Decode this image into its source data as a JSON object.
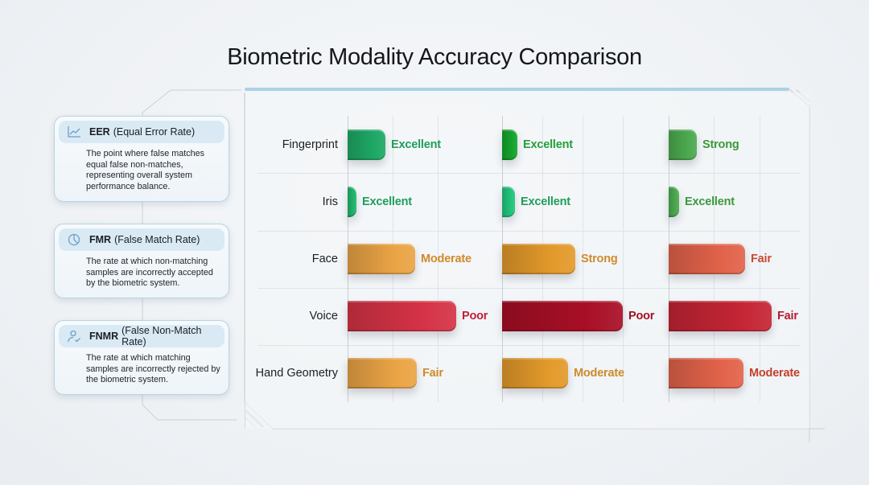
{
  "title": "Biometric Modality Accuracy Comparison",
  "definitions": [
    {
      "abbr": "EER",
      "full": "(Equal Error Rate)",
      "icon": "line-chart-icon",
      "text": "The point where false matches equal false non-matches, representing overall system performance balance."
    },
    {
      "abbr": "FMR",
      "full": "(False Match Rate)",
      "icon": "pie-chart-icon",
      "text": "The rate at which non-matching samples are incorrectly accepted by the biometric system."
    },
    {
      "abbr": "FNMR",
      "full": "(False Non-Match Rate)",
      "icon": "user-check-icon",
      "text": "The rate at which matching samples are incorrectly rejected by the biometric system."
    }
  ],
  "colors": {
    "accent_rule": "#a9d2e6",
    "excellent": "#1f9d5a",
    "strong": "#3a9a3a",
    "moderate": "#d98b22",
    "fair": "#c2402c",
    "poor": "#b31b34"
  },
  "chart_data": {
    "type": "bar",
    "orientation": "horizontal",
    "title": "Biometric Modality Accuracy Comparison",
    "categories": [
      "Fingerprint",
      "Iris",
      "Face",
      "Voice",
      "Hand Geometry"
    ],
    "series": [
      {
        "name": "EER",
        "values": [
          47,
          11,
          84,
          135,
          86
        ],
        "ratings": [
          "Excellent",
          "Excellent",
          "Moderate",
          "Poor",
          "Fair"
        ],
        "colors": [
          "#1ea865",
          "#20b56c",
          "#eaa445",
          "#d53346",
          "#eaa445"
        ],
        "label_colors": [
          "#1f9d5a",
          "#1f9d5a",
          "#cf8a2a",
          "#c01f38",
          "#cf8a2a"
        ]
      },
      {
        "name": "FMR",
        "values": [
          19,
          16,
          91,
          150,
          82
        ],
        "ratings": [
          "Excellent",
          "Excellent",
          "Strong",
          "Poor",
          "Moderate"
        ],
        "colors": [
          "#15a52c",
          "#22c47c",
          "#e39a2b",
          "#a80f26",
          "#e39a2b"
        ],
        "label_colors": [
          "#22a03a",
          "#1f9d5a",
          "#cf8a2a",
          "#9e1226",
          "#cf8a2a"
        ]
      },
      {
        "name": "FNMR",
        "values": [
          35,
          13,
          95,
          128,
          93
        ],
        "ratings": [
          "Strong",
          "Excellent",
          "Fair",
          "Fair",
          "Moderate"
        ],
        "colors": [
          "#4caa4f",
          "#4caa4f",
          "#e2634a",
          "#c52535",
          "#e2634a"
        ],
        "label_colors": [
          "#3a9a3a",
          "#3a9a3a",
          "#c94a35",
          "#b31b34",
          "#c2402c"
        ]
      }
    ],
    "xlabel": "",
    "ylabel": "",
    "grid": true,
    "legend": "none (column definitions in left panel)"
  }
}
